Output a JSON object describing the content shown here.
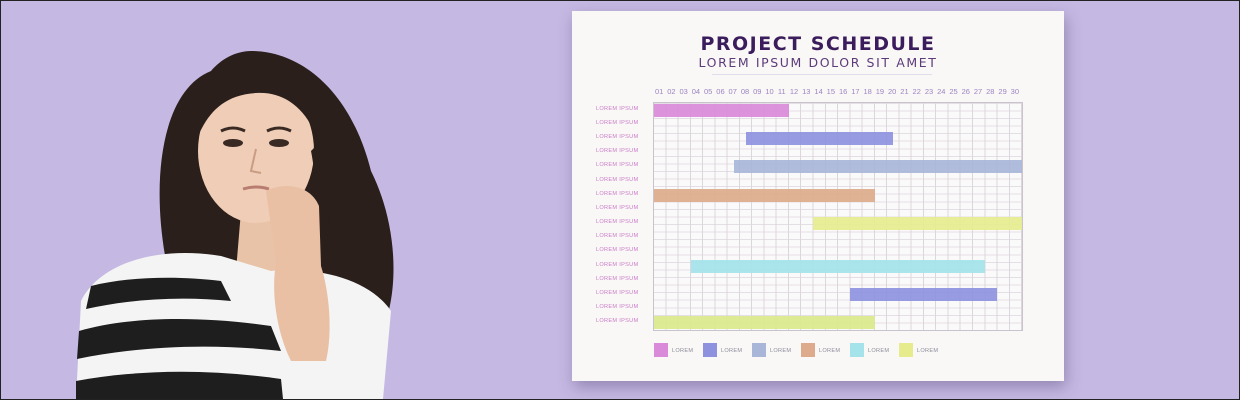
{
  "chart_data": {
    "type": "gantt",
    "title": "PROJECT SCHEDULE",
    "subtitle": "LOREM IPSUM DOLOR SIT AMET",
    "days": [
      "01",
      "02",
      "03",
      "04",
      "05",
      "06",
      "07",
      "08",
      "09",
      "10",
      "11",
      "12",
      "13",
      "14",
      "15",
      "16",
      "17",
      "18",
      "19",
      "20",
      "21",
      "22",
      "23",
      "24",
      "25",
      "26",
      "27",
      "28",
      "29",
      "30"
    ],
    "row_labels": [
      "LOREM IPSUM",
      "LOREM IPSUM",
      "LOREM IPSUM",
      "LOREM IPSUM",
      "LOREM IPSUM",
      "LOREM IPSUM",
      "LOREM IPSUM",
      "LOREM IPSUM",
      "LOREM IPSUM",
      "LOREM IPSUM",
      "LOREM IPSUM",
      "LOREM IPSUM",
      "LOREM IPSUM",
      "LOREM IPSUM",
      "LOREM IPSUM",
      "LOREM IPSUM"
    ],
    "tasks": [
      {
        "row": 1,
        "start": 1,
        "end": 11,
        "color": "#d98ad9"
      },
      {
        "row": 3,
        "start": 8.5,
        "end": 19.5,
        "color": "#8e92de"
      },
      {
        "row": 5,
        "start": 7.5,
        "end": 30,
        "color": "#a9b6d8"
      },
      {
        "row": 7,
        "start": 1,
        "end": 18,
        "color": "#ddab8b"
      },
      {
        "row": 9,
        "start": 14,
        "end": 30.5,
        "color": "#e6ec8e"
      },
      {
        "row": 12,
        "start": 4,
        "end": 27,
        "color": "#a4e3ea"
      },
      {
        "row": 14,
        "start": 17,
        "end": 28,
        "color": "#8e92de"
      },
      {
        "row": 16,
        "start": 1,
        "end": 18,
        "color": "#dbe98c"
      }
    ],
    "legend": [
      {
        "label": "LOREM",
        "color": "#d98ad9"
      },
      {
        "label": "LOREM",
        "color": "#8e92de"
      },
      {
        "label": "LOREM",
        "color": "#a9b6d8"
      },
      {
        "label": "LOREM",
        "color": "#ddab8b"
      },
      {
        "label": "LOREM",
        "color": "#a4e3ea"
      },
      {
        "label": "LOREM",
        "color": "#e6ec8e"
      }
    ],
    "grid": true
  },
  "colors": {
    "background": "#c5b9e3",
    "card": "#faf8f6",
    "title": "#3b1c5c",
    "row_label": "#c97bc9",
    "day_label": "#9a84c2"
  }
}
